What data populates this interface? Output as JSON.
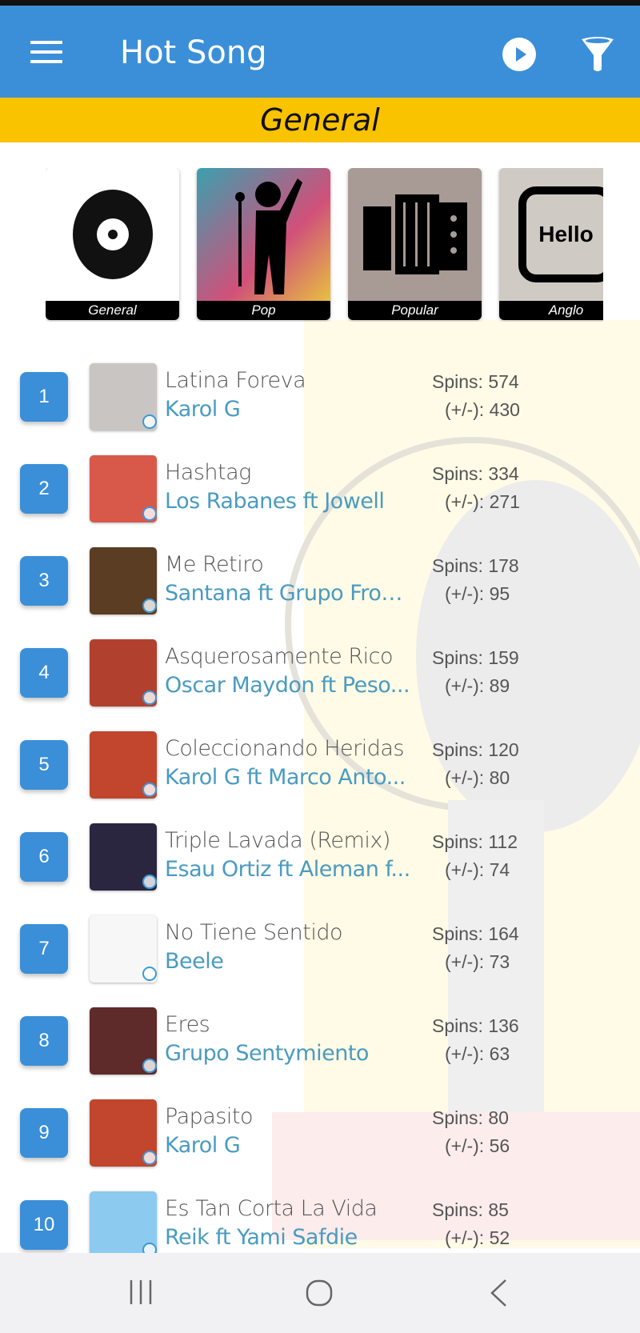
{
  "appbar": {
    "title": "Hot Song",
    "menu_icon": "hamburger-icon",
    "play_icon": "play-circle-icon",
    "filter_icon": "filter-icon",
    "color": "#3a8fd8"
  },
  "genre_banner": {
    "label": "General",
    "color": "#f9c300"
  },
  "categories": [
    {
      "label": "General",
      "icon": "vinyl-record-icon"
    },
    {
      "label": "Pop",
      "icon": "singer-icon"
    },
    {
      "label": "Popular",
      "icon": "accordion-icon"
    },
    {
      "label": "Anglo",
      "icon": "hello-speech-icon",
      "art_text": "Hello"
    }
  ],
  "songs": [
    {
      "rank": "1",
      "title": "Latina Foreva",
      "artist": "Karol G",
      "spins": "Spins: 574",
      "delta": "(+/-): 430",
      "thumb": "#c9c5c2"
    },
    {
      "rank": "2",
      "title": "Hashtag",
      "artist": "Los Rabanes ft Jowell",
      "spins": "Spins: 334",
      "delta": "(+/-): 271",
      "thumb": "#d8584a"
    },
    {
      "rank": "3",
      "title": "Me Retiro",
      "artist": "Santana ft Grupo Front...",
      "spins": "Spins: 178",
      "delta": "(+/-): 95",
      "thumb": "#5a3d22"
    },
    {
      "rank": "4",
      "title": "Asquerosamente Rico",
      "artist": "Oscar Maydon ft Peso...",
      "spins": "Spins: 159",
      "delta": "(+/-): 89",
      "thumb": "#b2402e"
    },
    {
      "rank": "5",
      "title": "Coleccionando Heridas",
      "artist": "Karol G ft Marco Anto...",
      "spins": "Spins: 120",
      "delta": "(+/-): 80",
      "thumb": "#c2452d"
    },
    {
      "rank": "6",
      "title": "Triple Lavada (Remix)",
      "artist": "Esau Ortiz ft Aleman f...",
      "spins": "Spins: 112",
      "delta": "(+/-): 74",
      "thumb": "#2a2640"
    },
    {
      "rank": "7",
      "title": "No Tiene Sentido",
      "artist": "Beele",
      "spins": "Spins: 164",
      "delta": "(+/-): 73",
      "thumb": "#f7f7f7"
    },
    {
      "rank": "8",
      "title": "Eres",
      "artist": "Grupo Sentymiento",
      "spins": "Spins: 136",
      "delta": "(+/-): 63",
      "thumb": "#5e2a2a"
    },
    {
      "rank": "9",
      "title": "Papasito",
      "artist": "Karol G",
      "spins": "Spins: 80",
      "delta": "(+/-): 56",
      "thumb": "#c2452d"
    },
    {
      "rank": "10",
      "title": "Es Tan Corta La Vida",
      "artist": "Reik ft Yami Safdie",
      "spins": "Spins: 85",
      "delta": "(+/-): 52",
      "thumb": "#8ccaf0"
    }
  ],
  "navbar": {
    "recents_icon": "recents-icon",
    "home_icon": "home-icon",
    "back_icon": "back-icon"
  }
}
